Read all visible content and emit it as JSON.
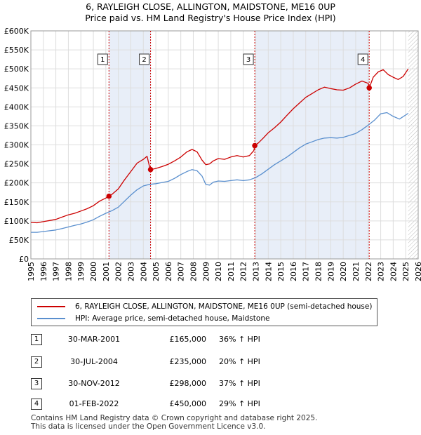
{
  "title_line1": "6, RAYLEIGH CLOSE, ALLINGTON, MAIDSTONE, ME16 0UP",
  "title_line2": "Price paid vs. HM Land Registry's House Price Index (HPI)",
  "chart_data": {
    "type": "line",
    "x_range": [
      1995,
      2026
    ],
    "ylim": [
      0,
      600000
    ],
    "y_ticks": [
      0,
      50000,
      100000,
      150000,
      200000,
      250000,
      300000,
      350000,
      400000,
      450000,
      500000,
      550000,
      600000
    ],
    "y_tick_labels": [
      "£0",
      "£50K",
      "£100K",
      "£150K",
      "£200K",
      "£250K",
      "£300K",
      "£350K",
      "£400K",
      "£450K",
      "£500K",
      "£550K",
      "£600K"
    ],
    "x_ticks": [
      1995,
      1996,
      1997,
      1998,
      1999,
      2000,
      2001,
      2002,
      2003,
      2004,
      2005,
      2006,
      2007,
      2008,
      2009,
      2010,
      2011,
      2012,
      2013,
      2014,
      2015,
      2016,
      2017,
      2018,
      2019,
      2020,
      2021,
      2022,
      2023,
      2024,
      2025,
      2026
    ],
    "x_tick_labels": [
      "1995",
      "1996",
      "1997",
      "1998",
      "1999",
      "2000",
      "2001",
      "2002",
      "2003",
      "2004",
      "2005",
      "2006",
      "2007",
      "2008",
      "2009",
      "2010",
      "2011",
      "2012",
      "2013",
      "2014",
      "2015",
      "2016",
      "2017",
      "2018",
      "2019",
      "2020",
      "2021",
      "2022",
      "2023",
      "2024",
      "2025",
      "2026"
    ],
    "grid": true,
    "shaded_ranges": [
      [
        2001.25,
        2004.58
      ],
      [
        2012.92,
        2022.08
      ]
    ],
    "hatched_from": 2025.2,
    "series": [
      {
        "name": "6, RAYLEIGH CLOSE, ALLINGTON, MAIDSTONE, ME16 0UP (semi-detached house)",
        "color": "#cc0000",
        "x": [
          1995.0,
          1995.5,
          1996.0,
          1996.5,
          1997.0,
          1997.5,
          1998.0,
          1998.5,
          1999.0,
          1999.5,
          2000.0,
          2000.5,
          2001.0,
          2001.25,
          2001.5,
          2002.0,
          2002.5,
          2003.0,
          2003.5,
          2004.0,
          2004.3,
          2004.5,
          2004.58,
          2005.0,
          2005.5,
          2006.0,
          2006.5,
          2007.0,
          2007.5,
          2007.9,
          2008.3,
          2008.7,
          2009.0,
          2009.3,
          2009.6,
          2010.0,
          2010.5,
          2011.0,
          2011.5,
          2012.0,
          2012.5,
          2012.85,
          2012.92,
          2013.2,
          2013.6,
          2014.0,
          2014.5,
          2015.0,
          2015.5,
          2016.0,
          2016.5,
          2017.0,
          2017.5,
          2018.0,
          2018.5,
          2019.0,
          2019.5,
          2020.0,
          2020.5,
          2021.0,
          2021.5,
          2022.0,
          2022.08,
          2022.4,
          2022.8,
          2023.2,
          2023.6,
          2024.0,
          2024.4,
          2024.8,
          2025.2
        ],
        "values": [
          96000,
          95000,
          98000,
          101000,
          104000,
          110000,
          116000,
          120000,
          126000,
          132000,
          140000,
          152000,
          160000,
          165000,
          170000,
          184000,
          208000,
          230000,
          252000,
          262000,
          270000,
          242000,
          235000,
          238000,
          243000,
          249000,
          258000,
          268000,
          282000,
          288000,
          282000,
          260000,
          248000,
          250000,
          258000,
          264000,
          262000,
          268000,
          272000,
          268000,
          272000,
          285000,
          298000,
          305000,
          318000,
          332000,
          345000,
          360000,
          378000,
          395000,
          410000,
          425000,
          435000,
          445000,
          452000,
          448000,
          445000,
          444000,
          450000,
          460000,
          468000,
          462000,
          450000,
          478000,
          492000,
          498000,
          485000,
          478000,
          472000,
          480000,
          500000
        ]
      },
      {
        "name": "HPI: Average price, semi-detached house, Maidstone",
        "color": "#5a8fce",
        "x": [
          1995.0,
          1995.5,
          1996.0,
          1996.5,
          1997.0,
          1997.5,
          1998.0,
          1998.5,
          1999.0,
          1999.5,
          2000.0,
          2000.5,
          2001.0,
          2001.5,
          2002.0,
          2002.5,
          2003.0,
          2003.5,
          2004.0,
          2004.5,
          2005.0,
          2005.5,
          2006.0,
          2006.5,
          2007.0,
          2007.5,
          2007.9,
          2008.3,
          2008.7,
          2009.0,
          2009.3,
          2009.6,
          2010.0,
          2010.5,
          2011.0,
          2011.5,
          2012.0,
          2012.5,
          2013.0,
          2013.5,
          2014.0,
          2014.5,
          2015.0,
          2015.5,
          2016.0,
          2016.5,
          2017.0,
          2017.5,
          2018.0,
          2018.5,
          2019.0,
          2019.5,
          2020.0,
          2020.5,
          2021.0,
          2021.5,
          2022.0,
          2022.5,
          2023.0,
          2023.5,
          2024.0,
          2024.5,
          2025.2
        ],
        "values": [
          70000,
          70000,
          72000,
          74000,
          76000,
          80000,
          84000,
          88000,
          92000,
          97000,
          103000,
          112000,
          120000,
          127000,
          136000,
          152000,
          168000,
          182000,
          192000,
          196000,
          198000,
          201000,
          204000,
          212000,
          222000,
          230000,
          235000,
          232000,
          218000,
          196000,
          194000,
          202000,
          205000,
          204000,
          206000,
          208000,
          206000,
          208000,
          214000,
          224000,
          236000,
          248000,
          258000,
          268000,
          280000,
          292000,
          302000,
          308000,
          314000,
          318000,
          319000,
          318000,
          320000,
          325000,
          330000,
          340000,
          352000,
          365000,
          382000,
          385000,
          375000,
          368000,
          383000
        ]
      }
    ],
    "sales": [
      {
        "num": "1",
        "x": 2001.25,
        "value": 165000,
        "date": "30-MAR-2001",
        "price": "£165,000",
        "hpi": "36% ↑ HPI"
      },
      {
        "num": "2",
        "x": 2004.58,
        "value": 235000,
        "date": "30-JUL-2004",
        "price": "£235,000",
        "hpi": "20% ↑ HPI"
      },
      {
        "num": "3",
        "x": 2012.92,
        "value": 298000,
        "date": "30-NOV-2012",
        "price": "£298,000",
        "hpi": "37% ↑ HPI"
      },
      {
        "num": "4",
        "x": 2022.08,
        "value": 450000,
        "date": "01-FEB-2022",
        "price": "£450,000",
        "hpi": "29% ↑ HPI"
      }
    ]
  },
  "legend": {
    "item1": "6, RAYLEIGH CLOSE, ALLINGTON, MAIDSTONE, ME16 0UP (semi-detached house)",
    "item2": "HPI: Average price, semi-detached house, Maidstone",
    "color1": "#cc0000",
    "color2": "#5a8fce"
  },
  "sales_table": [
    {
      "num": "1",
      "date": "30-MAR-2001",
      "price": "£165,000",
      "hpi": "36% ↑ HPI"
    },
    {
      "num": "2",
      "date": "30-JUL-2004",
      "price": "£235,000",
      "hpi": "20% ↑ HPI"
    },
    {
      "num": "3",
      "date": "30-NOV-2012",
      "price": "£298,000",
      "hpi": "37% ↑ HPI"
    },
    {
      "num": "4",
      "date": "01-FEB-2022",
      "price": "£450,000",
      "hpi": "29% ↑ HPI"
    }
  ],
  "footer_line1": "Contains HM Land Registry data © Crown copyright and database right 2025.",
  "footer_line2": "This data is licensed under the Open Government Licence v3.0."
}
